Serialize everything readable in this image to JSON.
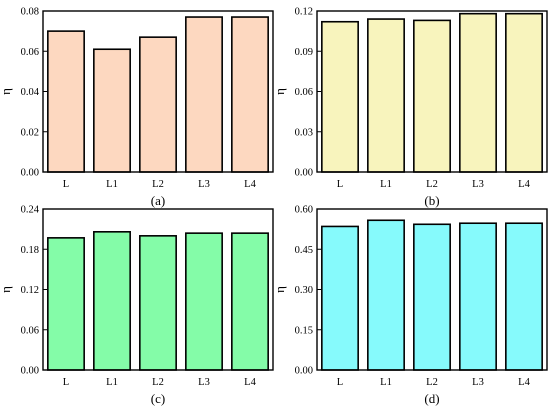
{
  "chart_data": [
    {
      "type": "bar",
      "panel_label": "(a)",
      "ylabel": "η",
      "categories": [
        "L",
        "L1",
        "L2",
        "L3",
        "L4"
      ],
      "values": [
        0.07,
        0.061,
        0.067,
        0.077,
        0.077
      ],
      "ylim": [
        0,
        0.08
      ],
      "yticks": [
        "0.00",
        "0.02",
        "0.04",
        "0.06",
        "0.08"
      ],
      "bar_color": "#fdd8c0"
    },
    {
      "type": "bar",
      "panel_label": "(b)",
      "ylabel": "η",
      "categories": [
        "L",
        "L1",
        "L2",
        "L3",
        "L4"
      ],
      "values": [
        0.112,
        0.114,
        0.113,
        0.118,
        0.118
      ],
      "ylim": [
        0,
        0.12
      ],
      "yticks": [
        "0.00",
        "0.03",
        "0.06",
        "0.09",
        "0.12"
      ],
      "bar_color": "#f8f4bd"
    },
    {
      "type": "bar",
      "panel_label": "(c)",
      "ylabel": "η",
      "categories": [
        "L",
        "L1",
        "L2",
        "L3",
        "L4"
      ],
      "values": [
        0.197,
        0.206,
        0.2,
        0.204,
        0.204
      ],
      "ylim": [
        0,
        0.24
      ],
      "yticks": [
        "0.00",
        "0.06",
        "0.12",
        "0.18",
        "0.24"
      ],
      "bar_color": "#84fca8"
    },
    {
      "type": "bar",
      "panel_label": "(d)",
      "ylabel": "η",
      "categories": [
        "L",
        "L1",
        "L2",
        "L3",
        "L4"
      ],
      "values": [
        0.535,
        0.558,
        0.543,
        0.547,
        0.547
      ],
      "ylim": [
        0,
        0.6
      ],
      "yticks": [
        "0.00",
        "0.15",
        "0.30",
        "0.45",
        "0.60"
      ],
      "bar_color": "#86fafc"
    }
  ]
}
